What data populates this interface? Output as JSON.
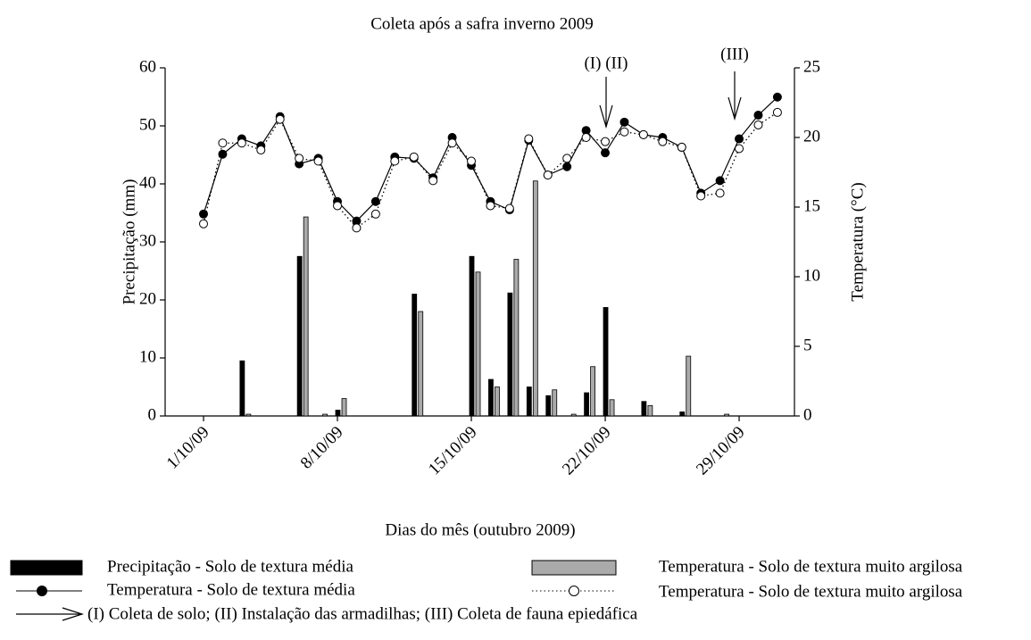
{
  "chart_data": {
    "type": "bar",
    "title": "Coleta após a safra inverno 2009",
    "x_label": "Dias do mês (outubro 2009)",
    "y_label": "Precipitação (mm)",
    "y2_label": "Temperatura (°C)",
    "categories": [
      "1/10/09",
      null,
      null,
      null,
      null,
      null,
      null,
      "8/10/09",
      null,
      null,
      null,
      null,
      null,
      null,
      "15/10/09",
      null,
      null,
      null,
      null,
      null,
      null,
      "22/10/09",
      null,
      null,
      null,
      null,
      null,
      null,
      "29/10/09",
      null,
      null
    ],
    "ylim": [
      0,
      60
    ],
    "yticks": [
      0,
      10,
      20,
      30,
      40,
      50,
      60
    ],
    "y2lim": [
      0,
      25
    ],
    "y2ticks": [
      0,
      5,
      10,
      15,
      20,
      25
    ],
    "series": [
      {
        "name": "Precipitação - Solo de textura média",
        "type": "bar",
        "color": "#000000",
        "values": [
          0,
          0,
          9.5,
          0,
          0,
          27.5,
          0,
          1.0,
          0,
          0,
          0,
          21,
          0,
          0,
          27.5,
          6.3,
          21.2,
          5,
          3.5,
          0,
          4,
          18.7,
          0,
          2.5,
          0,
          0.7,
          0,
          0,
          0,
          0,
          0
        ]
      },
      {
        "name": "Temperatura - Solo de textura muito argilosa",
        "type": "bar",
        "color": "#aaaaaa",
        "values": [
          0,
          0,
          0.3,
          0,
          0,
          34.3,
          0.3,
          3,
          0,
          0,
          0,
          18,
          0,
          0,
          24.8,
          5,
          27,
          40.5,
          4.5,
          0.3,
          8.5,
          2.8,
          0,
          1.8,
          0,
          10.3,
          0,
          0.3,
          0,
          0,
          0
        ]
      },
      {
        "name": "Temperatura - Solo de textura média",
        "type": "line",
        "axis": "y2",
        "color": "#000000",
        "values": [
          14.5,
          18.8,
          19.9,
          19.4,
          21.5,
          18.1,
          18.5,
          15.4,
          14.0,
          15.4,
          18.6,
          18.5,
          17.1,
          20.0,
          18.0,
          15.4,
          14.8,
          19.8,
          17.3,
          17.9,
          20.5,
          18.9,
          21.1,
          20.2,
          20.0,
          19.3,
          16.0,
          16.9,
          19.9,
          21.6,
          22.9
        ]
      },
      {
        "name": "Temperatura - Solo de textura muito argilosa",
        "type": "line",
        "axis": "y2",
        "color": "#ffffff",
        "values": [
          13.8,
          19.6,
          19.6,
          19.1,
          21.3,
          18.5,
          18.3,
          15.1,
          13.5,
          14.5,
          18.3,
          18.6,
          16.9,
          19.6,
          18.3,
          15.1,
          14.9,
          19.9,
          17.3,
          18.5,
          20.0,
          19.7,
          20.4,
          20.2,
          19.7,
          19.3,
          15.8,
          16.0,
          19.2,
          20.9,
          21.8
        ]
      }
    ],
    "annotations": [
      "(I) (II)",
      "(III)"
    ],
    "arrow_legend": "(I) Coleta de solo; (II) Instalação das armadilhas; (III) Coleta de fauna epiedáfica"
  }
}
